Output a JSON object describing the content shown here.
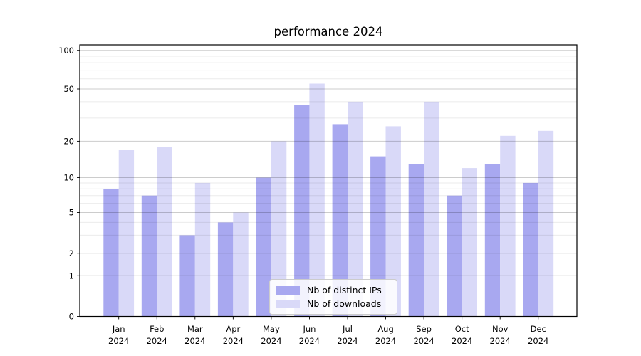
{
  "figure": {
    "title": "performance 2024"
  },
  "chart_data": {
    "type": "bar",
    "title": "performance 2024",
    "categories": [
      "Jan",
      "Feb",
      "Mar",
      "Apr",
      "May",
      "Jun",
      "Jul",
      "Aug",
      "Sep",
      "Oct",
      "Nov",
      "Dec"
    ],
    "year": "2024",
    "series": [
      {
        "name": "Nb of distinct IPs",
        "color": "#a8a8f0",
        "values": [
          8,
          7,
          3,
          4,
          10,
          38,
          27,
          15,
          13,
          7,
          13,
          9
        ]
      },
      {
        "name": "Nb of downloads",
        "color": "#d9d9f8",
        "values": [
          17,
          18,
          9,
          5,
          20,
          55,
          40,
          26,
          40,
          12,
          22,
          24
        ]
      }
    ],
    "xlabel": "",
    "ylabel": "",
    "yscale": "symlog",
    "yticks": [
      0,
      1,
      2,
      5,
      10,
      20,
      50,
      100
    ],
    "yticks_minor": [
      3,
      4,
      6,
      7,
      8,
      9,
      30,
      40,
      60,
      70,
      80,
      90
    ],
    "ylim": [
      0,
      110
    ],
    "grid": true,
    "legend_position": "lower center"
  },
  "legend": {
    "items": [
      {
        "label": "Nb of distinct IPs"
      },
      {
        "label": "Nb of downloads"
      }
    ]
  }
}
